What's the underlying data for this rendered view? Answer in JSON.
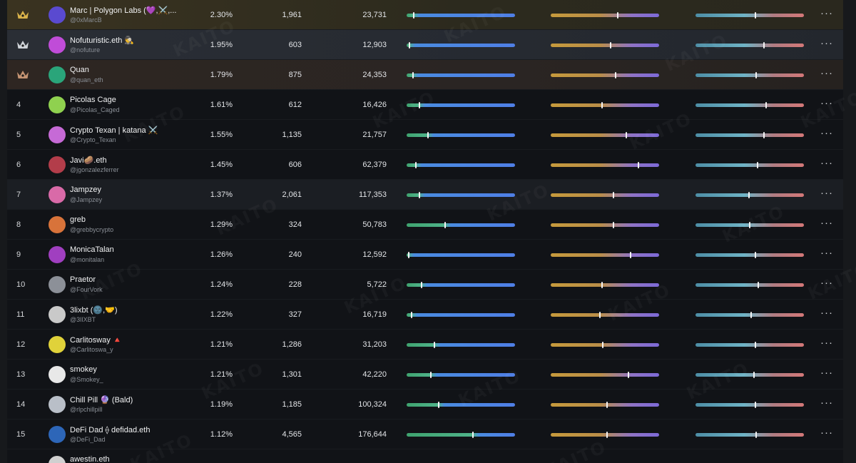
{
  "leaderboard": {
    "rows": [
      {
        "rank": "1",
        "crown": "gold",
        "name": "Marc | Polygon Labs (💜,⚔️,...",
        "handle": "@0xMarcB",
        "percent": "2.30%",
        "col2": "1,961",
        "col3": "23,731",
        "bar1": 0.06,
        "bar2": 0.62,
        "bar3": 0.55,
        "avatar": "#5a4ad0",
        "tone": "gold"
      },
      {
        "rank": "2",
        "crown": "silver",
        "name": "Nofuturistic.eth 🕵",
        "handle": "@nofuture",
        "percent": "1.95%",
        "col2": "603",
        "col3": "12,903",
        "bar1": 0.02,
        "bar2": 0.55,
        "bar3": 0.63,
        "avatar": "#c04cd8",
        "tone": "silver"
      },
      {
        "rank": "3",
        "crown": "bronze",
        "name": "Quan",
        "handle": "@quan_eth",
        "percent": "1.79%",
        "col2": "875",
        "col3": "24,353",
        "bar1": 0.05,
        "bar2": 0.6,
        "bar3": 0.56,
        "avatar": "#2aa57a",
        "tone": "bronze"
      },
      {
        "rank": "4",
        "crown": "",
        "name": "Picolas Cage",
        "handle": "@Picolas_Caged",
        "percent": "1.61%",
        "col2": "612",
        "col3": "16,426",
        "bar1": 0.11,
        "bar2": 0.47,
        "bar3": 0.65,
        "avatar": "#8fd14f",
        "tone": "plain"
      },
      {
        "rank": "5",
        "crown": "",
        "name": "Crypto Texan | katana ⚔️",
        "handle": "@Crypto_Texan",
        "percent": "1.55%",
        "col2": "1,135",
        "col3": "21,757",
        "bar1": 0.19,
        "bar2": 0.7,
        "bar3": 0.63,
        "avatar": "#c66ad6",
        "tone": "plain"
      },
      {
        "rank": "6",
        "crown": "",
        "name": "Javi🥔.eth",
        "handle": "@jgonzalezferrer",
        "percent": "1.45%",
        "col2": "606",
        "col3": "62,379",
        "bar1": 0.08,
        "bar2": 0.81,
        "bar3": 0.57,
        "avatar": "#b33d4a",
        "tone": "plain"
      },
      {
        "rank": "7",
        "crown": "",
        "name": "Jampzey",
        "handle": "@Jampzey",
        "percent": "1.37%",
        "col2": "2,061",
        "col3": "117,353",
        "bar1": 0.11,
        "bar2": 0.58,
        "bar3": 0.49,
        "avatar": "#d96aa8",
        "tone": "hl"
      },
      {
        "rank": "8",
        "crown": "",
        "name": "greb",
        "handle": "@grebbycrypto",
        "percent": "1.29%",
        "col2": "324",
        "col3": "50,783",
        "bar1": 0.35,
        "bar2": 0.58,
        "bar3": 0.5,
        "avatar": "#d8733a",
        "tone": "plain"
      },
      {
        "rank": "9",
        "crown": "",
        "name": "MonicaTalan",
        "handle": "@monitalan",
        "percent": "1.26%",
        "col2": "240",
        "col3": "12,592",
        "bar1": 0.01,
        "bar2": 0.74,
        "bar3": 0.55,
        "avatar": "#a03fc0",
        "tone": "plain"
      },
      {
        "rank": "10",
        "crown": "",
        "name": "Praetor",
        "handle": "@FourVork",
        "percent": "1.24%",
        "col2": "228",
        "col3": "5,722",
        "bar1": 0.13,
        "bar2": 0.47,
        "bar3": 0.58,
        "avatar": "#8c9098",
        "tone": "plain"
      },
      {
        "rank": "11",
        "crown": "",
        "name": "3lixbt (🌚,🤝)",
        "handle": "@3lIXBT",
        "percent": "1.22%",
        "col2": "327",
        "col3": "16,719",
        "bar1": 0.04,
        "bar2": 0.45,
        "bar3": 0.51,
        "avatar": "#c9c9c9",
        "tone": "plain"
      },
      {
        "rank": "12",
        "crown": "",
        "name": "Carlitosway 🔺",
        "handle": "@Carlitoswa_y",
        "percent": "1.21%",
        "col2": "1,286",
        "col3": "31,203",
        "bar1": 0.25,
        "bar2": 0.48,
        "bar3": 0.55,
        "avatar": "#e0d23a",
        "tone": "plain"
      },
      {
        "rank": "13",
        "crown": "",
        "name": "smokey",
        "handle": "@Smokey_",
        "percent": "1.21%",
        "col2": "1,301",
        "col3": "42,220",
        "bar1": 0.22,
        "bar2": 0.72,
        "bar3": 0.54,
        "avatar": "#e8e8e8",
        "tone": "plain"
      },
      {
        "rank": "14",
        "crown": "",
        "name": "Chill Pill 🔮 (Bald)",
        "handle": "@rlpchillpill",
        "percent": "1.19%",
        "col2": "1,185",
        "col3": "100,324",
        "bar1": 0.29,
        "bar2": 0.52,
        "bar3": 0.55,
        "avatar": "#b9bfc8",
        "tone": "plain"
      },
      {
        "rank": "15",
        "crown": "",
        "name": "DeFi Dad ⟠ defidad.eth",
        "handle": "@DeFi_Dad",
        "percent": "1.12%",
        "col2": "4,565",
        "col3": "176,644",
        "bar1": 0.61,
        "bar2": 0.52,
        "bar3": 0.56,
        "avatar": "#2d66b8",
        "tone": "plain"
      },
      {
        "rank": "",
        "crown": "",
        "name": "awestin.eth",
        "handle": "",
        "percent": "",
        "col2": "",
        "col3": "",
        "bar1": null,
        "bar2": null,
        "bar3": null,
        "avatar": "#d0d0d0",
        "tone": "plain"
      }
    ],
    "more_label": "···",
    "watermark": "KAITO"
  }
}
